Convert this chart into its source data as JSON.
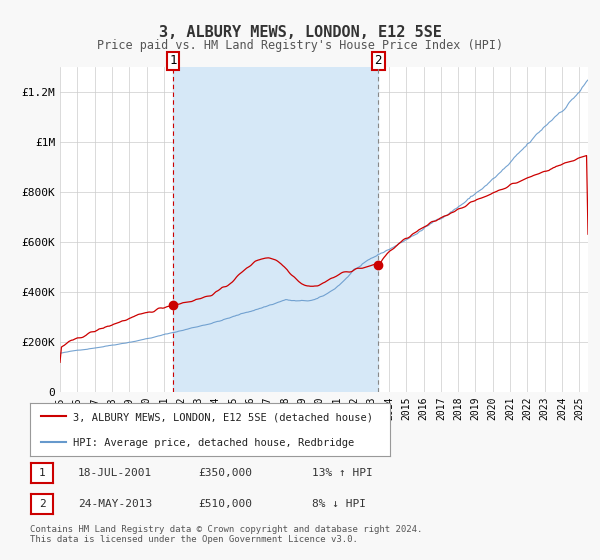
{
  "title": "3, ALBURY MEWS, LONDON, E12 5SE",
  "subtitle": "Price paid vs. HM Land Registry's House Price Index (HPI)",
  "legend_property": "3, ALBURY MEWS, LONDON, E12 5SE (detached house)",
  "legend_hpi": "HPI: Average price, detached house, Redbridge",
  "annotation1_label": "1",
  "annotation1_date": "18-JUL-2001",
  "annotation1_price": "£350,000",
  "annotation1_hpi": "13% ↑ HPI",
  "annotation2_label": "2",
  "annotation2_date": "24-MAY-2013",
  "annotation2_price": "£510,000",
  "annotation2_hpi": "8% ↓ HPI",
  "footer": "Contains HM Land Registry data © Crown copyright and database right 2024.\nThis data is licensed under the Open Government Licence v3.0.",
  "ylim": [
    0,
    1300000
  ],
  "xlim_start": 1995.0,
  "xlim_end": 2025.5,
  "sale1_x": 2001.54,
  "sale1_y": 350000,
  "sale2_x": 2013.39,
  "sale2_y": 510000,
  "vline1_x": 2001.54,
  "vline2_x": 2013.39,
  "shade_start": 2001.54,
  "shade_end": 2013.39,
  "background_color": "#f8f8f8",
  "plot_bg_color": "#ffffff",
  "shade_color": "#d6e8f7",
  "property_line_color": "#cc0000",
  "hpi_line_color": "#6699cc",
  "vline1_color": "#cc0000",
  "vline2_color": "#888888",
  "dot_color": "#cc0000",
  "grid_color": "#cccccc",
  "annotation_box_color": "#cc0000",
  "ytick_labels": [
    "0",
    "£200K",
    "£400K",
    "£600K",
    "£800K",
    "£1M",
    "£1.2M"
  ],
  "ytick_values": [
    0,
    200000,
    400000,
    600000,
    800000,
    1000000,
    1200000
  ]
}
